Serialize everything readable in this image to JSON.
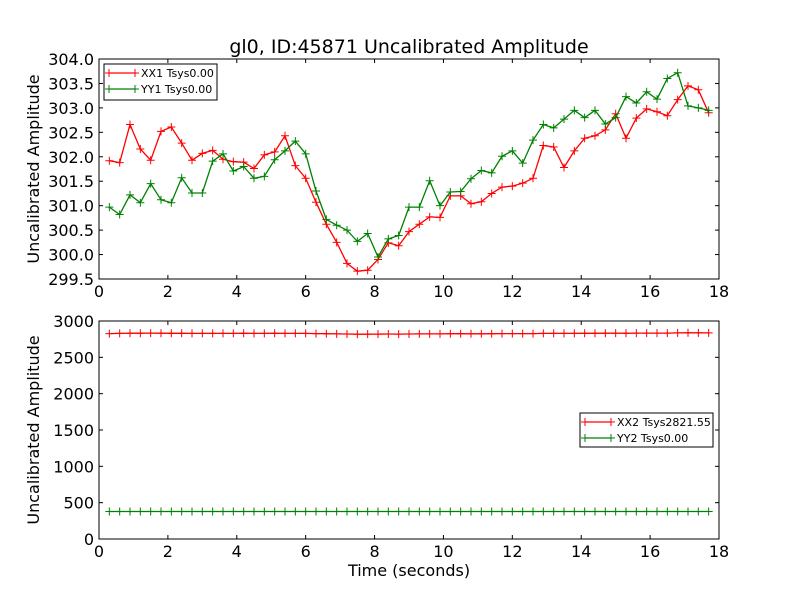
{
  "chart_data": [
    {
      "type": "line",
      "title": "gl0, ID:45871 Uncalibrated Amplitude",
      "xlabel": "",
      "ylabel": "Uncalibrated Amplitude",
      "xlim": [
        0,
        18
      ],
      "ylim": [
        299.5,
        304.0
      ],
      "xticks": [
        "0",
        "2",
        "4",
        "6",
        "8",
        "10",
        "12",
        "14",
        "16",
        "18"
      ],
      "yticks": [
        "299.5",
        "300.0",
        "300.5",
        "301.0",
        "301.5",
        "302.0",
        "302.5",
        "303.0",
        "303.5",
        "304.0"
      ],
      "grid": false,
      "legend_position": "top-left",
      "marker": "+",
      "x": [
        0.3,
        0.6,
        0.9,
        1.2,
        1.5,
        1.8,
        2.1,
        2.4,
        2.7,
        3.0,
        3.3,
        3.6,
        3.9,
        4.2,
        4.5,
        4.8,
        5.1,
        5.4,
        5.7,
        6.0,
        6.3,
        6.6,
        6.9,
        7.2,
        7.5,
        7.8,
        8.1,
        8.4,
        8.7,
        9.0,
        9.3,
        9.6,
        9.9,
        10.2,
        10.5,
        10.8,
        11.1,
        11.4,
        11.7,
        12.0,
        12.3,
        12.6,
        12.9,
        13.2,
        13.5,
        13.8,
        14.1,
        14.4,
        14.7,
        15.0,
        15.3,
        15.6,
        15.9,
        16.2,
        16.5,
        16.8,
        17.1,
        17.4,
        17.7
      ],
      "series": [
        {
          "name": "XX1 Tsys0.00",
          "color": "#ff0000",
          "values": [
            301.92,
            301.88,
            302.66,
            302.16,
            301.93,
            302.52,
            302.61,
            302.28,
            301.93,
            302.07,
            302.13,
            301.95,
            301.9,
            301.89,
            301.76,
            302.04,
            302.1,
            302.43,
            301.82,
            301.56,
            301.07,
            300.62,
            300.25,
            299.82,
            299.66,
            299.68,
            299.9,
            300.24,
            300.18,
            300.47,
            300.62,
            300.77,
            300.76,
            301.2,
            301.2,
            301.04,
            301.08,
            301.25,
            301.38,
            301.4,
            301.46,
            301.56,
            302.23,
            302.2,
            301.78,
            302.12,
            302.38,
            302.43,
            302.55,
            302.88,
            302.38,
            302.79,
            302.98,
            302.92,
            302.84,
            303.17,
            303.45,
            303.37,
            302.9
          ]
        },
        {
          "name": "YY1 Tsys0.00",
          "color": "#008000",
          "values": [
            300.97,
            300.82,
            301.22,
            301.06,
            301.45,
            301.12,
            301.06,
            301.57,
            301.26,
            301.26,
            301.91,
            302.06,
            301.71,
            301.8,
            301.56,
            301.6,
            301.94,
            302.12,
            302.32,
            302.06,
            301.3,
            300.72,
            300.6,
            300.5,
            300.27,
            300.43,
            299.95,
            300.32,
            300.39,
            300.97,
            300.97,
            301.51,
            301.0,
            301.28,
            301.29,
            301.55,
            301.72,
            301.67,
            302.01,
            302.12,
            301.87,
            302.34,
            302.66,
            302.59,
            302.77,
            302.95,
            302.8,
            302.95,
            302.67,
            302.8,
            303.23,
            303.1,
            303.33,
            303.18,
            303.6,
            303.72,
            303.04,
            303.0,
            302.95
          ]
        }
      ]
    },
    {
      "type": "line",
      "title": "",
      "xlabel": "Time (seconds)",
      "ylabel": "Uncalibrated Amplitude",
      "xlim": [
        0,
        18
      ],
      "ylim": [
        0,
        3000
      ],
      "xticks": [
        "0",
        "2",
        "4",
        "6",
        "8",
        "10",
        "12",
        "14",
        "16",
        "18"
      ],
      "yticks": [
        "0",
        "500",
        "1000",
        "1500",
        "2000",
        "2500",
        "3000"
      ],
      "grid": false,
      "legend_position": "center-right",
      "marker": "+",
      "x": [
        0.3,
        0.6,
        0.9,
        1.2,
        1.5,
        1.8,
        2.1,
        2.4,
        2.7,
        3.0,
        3.3,
        3.6,
        3.9,
        4.2,
        4.5,
        4.8,
        5.1,
        5.4,
        5.7,
        6.0,
        6.3,
        6.6,
        6.9,
        7.2,
        7.5,
        7.8,
        8.1,
        8.4,
        8.7,
        9.0,
        9.3,
        9.6,
        9.9,
        10.2,
        10.5,
        10.8,
        11.1,
        11.4,
        11.7,
        12.0,
        12.3,
        12.6,
        12.9,
        13.2,
        13.5,
        13.8,
        14.1,
        14.4,
        14.7,
        15.0,
        15.3,
        15.6,
        15.9,
        16.2,
        16.5,
        16.8,
        17.1,
        17.4,
        17.7
      ],
      "series": [
        {
          "name": "XX2 Tsys2821.55",
          "color": "#ff0000",
          "values": [
            2826,
            2830,
            2832,
            2832,
            2833,
            2832,
            2831,
            2831,
            2830,
            2830,
            2830,
            2830,
            2830,
            2831,
            2829,
            2830,
            2831,
            2830,
            2829,
            2829,
            2827,
            2825,
            2823,
            2821,
            2819,
            2819,
            2820,
            2821,
            2820,
            2821,
            2822,
            2823,
            2823,
            2825,
            2825,
            2824,
            2824,
            2825,
            2826,
            2826,
            2826,
            2827,
            2829,
            2829,
            2829,
            2830,
            2831,
            2831,
            2832,
            2833,
            2831,
            2833,
            2834,
            2834,
            2834,
            2836,
            2838,
            2837,
            2836
          ]
        },
        {
          "name": "YY2 Tsys0.00",
          "color": "#008000",
          "values": [
            378,
            378,
            378,
            378,
            378,
            378,
            378,
            378,
            378,
            378,
            378,
            378,
            378,
            378,
            378,
            378,
            378,
            378,
            378,
            378,
            378,
            378,
            378,
            378,
            378,
            378,
            378,
            378,
            378,
            378,
            378,
            378,
            378,
            378,
            378,
            378,
            378,
            378,
            378,
            378,
            378,
            378,
            378,
            378,
            378,
            378,
            378,
            378,
            378,
            378,
            378,
            378,
            378,
            378,
            378,
            378,
            378,
            378,
            378
          ]
        }
      ]
    }
  ]
}
